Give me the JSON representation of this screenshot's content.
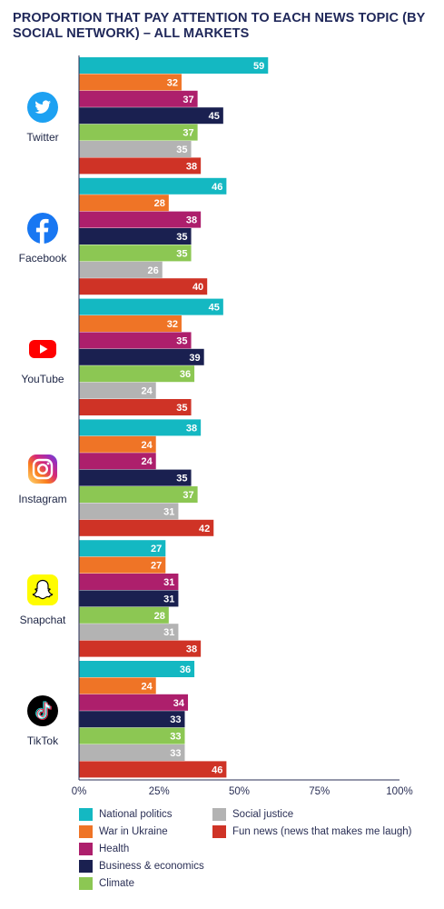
{
  "chart_data": {
    "type": "bar",
    "orientation": "horizontal",
    "title": "PROPORTION THAT PAY ATTENTION TO EACH NEWS TOPIC (BY SOCIAL NETWORK) – ALL MARKETS",
    "categories": [
      "Twitter",
      "Facebook",
      "YouTube",
      "Instagram",
      "Snapchat",
      "TikTok"
    ],
    "series": [
      {
        "name": "National politics",
        "color": "#14b8c2",
        "values": [
          59,
          46,
          45,
          38,
          27,
          36
        ]
      },
      {
        "name": "War in Ukraine",
        "color": "#ef7426",
        "values": [
          32,
          28,
          32,
          24,
          27,
          24
        ]
      },
      {
        "name": "Health",
        "color": "#ad1f6c",
        "values": [
          37,
          38,
          35,
          24,
          31,
          34
        ]
      },
      {
        "name": "Business & economics",
        "color": "#1a2050",
        "values": [
          45,
          35,
          39,
          35,
          31,
          33
        ]
      },
      {
        "name": "Climate",
        "color": "#8cc753",
        "values": [
          37,
          35,
          36,
          37,
          28,
          33
        ]
      },
      {
        "name": "Social justice",
        "color": "#b3b3b3",
        "values": [
          35,
          26,
          24,
          31,
          31,
          33
        ]
      },
      {
        "name": "Fun news (news that makes me laugh)",
        "color": "#cf3326",
        "values": [
          38,
          40,
          35,
          42,
          38,
          46
        ]
      }
    ],
    "xlim": [
      0,
      100
    ],
    "xticks": [
      "0%",
      "25%",
      "50%",
      "75%",
      "100%"
    ],
    "legend_position": "bottom",
    "grid": false
  },
  "networks": [
    {
      "label": "Twitter",
      "icon": "twitter-icon",
      "color": "#1da1f2"
    },
    {
      "label": "Facebook",
      "icon": "facebook-icon",
      "color": "#1877f2"
    },
    {
      "label": "YouTube",
      "icon": "youtube-icon",
      "color": "#ff0000"
    },
    {
      "label": "Instagram",
      "icon": "instagram-icon",
      "color": "#c13584"
    },
    {
      "label": "Snapchat",
      "icon": "snapchat-icon",
      "color": "#fffc00"
    },
    {
      "label": "TikTok",
      "icon": "tiktok-icon",
      "color": "#000000"
    }
  ],
  "legend": [
    "National politics",
    "War in Ukraine",
    "Health",
    "Business & economics",
    "Climate",
    "Social justice",
    "Fun news (news that makes me laugh)"
  ]
}
